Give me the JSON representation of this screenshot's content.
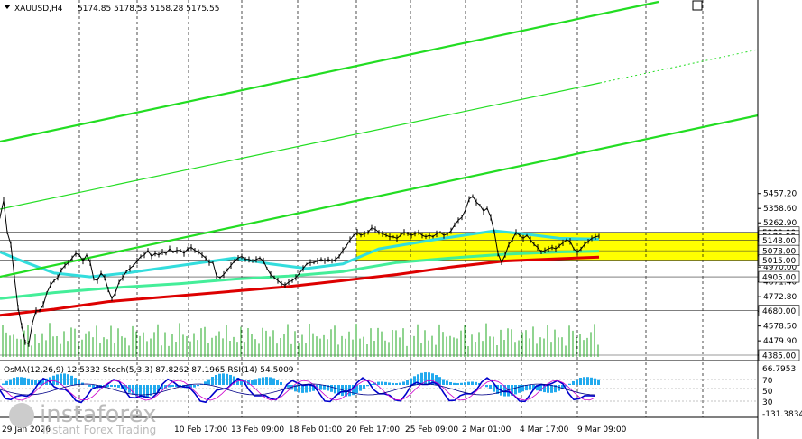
{
  "header": {
    "symbol": "XAUUSD,H4",
    "ohlc": "5174.85 5178.53 5158.28 5175.55"
  },
  "price_scale": {
    "ticks": [
      "5457.20",
      "5358.60",
      "5262.90",
      "5167.20",
      "5071.50",
      "4970.00",
      "4871.40",
      "4772.80",
      "4676.10",
      "4578.50",
      "4479.90",
      "4385.00"
    ],
    "levels": [
      {
        "label": "5200.00",
        "price": 5200.0,
        "kind": "level"
      },
      {
        "label": "5175.55",
        "price": 5175.55,
        "kind": "current"
      },
      {
        "label": "5148.00",
        "price": 5148.0,
        "kind": "level"
      },
      {
        "label": "5078.00",
        "price": 5078.0,
        "kind": "level"
      },
      {
        "label": "5015.00",
        "price": 5015.0,
        "kind": "level"
      },
      {
        "label": "4905.00",
        "price": 4905.0,
        "kind": "level"
      },
      {
        "label": "4680.00",
        "price": 4680.0,
        "kind": "level"
      },
      {
        "label": "4385.00",
        "price": 4385.0,
        "kind": "level"
      }
    ]
  },
  "time_axis": {
    "labels": [
      "29 Jan 2026",
      "10 Feb 17:00",
      "13 Feb 09:00",
      "18 Feb 01:00",
      "20 Feb 17:00",
      "25 Feb 09:00",
      "2 Mar 01:00",
      "4 Mar 17:00",
      "9 Mar 09:00"
    ]
  },
  "indicators": {
    "label": "OsMA(12,26,9) 12.5332  Stoch(5,3,3) 87.8262 87.1965  RSI(14) 54.5009",
    "scale": [
      "66.7953",
      "70",
      "50",
      "30",
      "-131.3834"
    ]
  },
  "watermark": {
    "brand": "instaforex",
    "tagline": "Instant Forex Trading"
  },
  "colors": {
    "zone": "#ffff00",
    "channel": "#22dd22",
    "ma_cyan": "#33dddd",
    "ma_green": "#44ee99",
    "ma_red": "#dd0000"
  },
  "chart_data": {
    "type": "candlestick",
    "symbol": "XAUUSD",
    "timeframe": "H4",
    "open": 5174.85,
    "high": 5178.53,
    "low": 5158.28,
    "close": 5175.55,
    "approx_close_path": [
      [
        0,
        5300
      ],
      [
        4,
        5410
      ],
      [
        8,
        5200
      ],
      [
        12,
        5120
      ],
      [
        16,
        4900
      ],
      [
        20,
        4700
      ],
      [
        24,
        4580
      ],
      [
        28,
        4470
      ],
      [
        32,
        4460
      ],
      [
        36,
        4600
      ],
      [
        40,
        4680
      ],
      [
        44,
        4680
      ],
      [
        48,
        4720
      ],
      [
        52,
        4800
      ],
      [
        56,
        4850
      ],
      [
        60,
        4880
      ],
      [
        64,
        4900
      ],
      [
        68,
        4950
      ],
      [
        72,
        4980
      ],
      [
        76,
        5000
      ],
      [
        80,
        5030
      ],
      [
        84,
        5060
      ],
      [
        88,
        5050
      ],
      [
        92,
        5010
      ],
      [
        96,
        5050
      ],
      [
        100,
        5000
      ],
      [
        104,
        4890
      ],
      [
        108,
        4880
      ],
      [
        112,
        4930
      ],
      [
        116,
        4900
      ],
      [
        120,
        4820
      ],
      [
        124,
        4760
      ],
      [
        128,
        4800
      ],
      [
        132,
        4870
      ],
      [
        136,
        4900
      ],
      [
        140,
        4940
      ],
      [
        144,
        4960
      ],
      [
        148,
        4980
      ],
      [
        152,
        5010
      ],
      [
        156,
        5040
      ],
      [
        160,
        5050
      ],
      [
        164,
        5080
      ],
      [
        168,
        5040
      ],
      [
        172,
        5060
      ],
      [
        176,
        5050
      ],
      [
        180,
        5070
      ],
      [
        184,
        5060
      ],
      [
        188,
        5090
      ],
      [
        192,
        5070
      ],
      [
        196,
        5080
      ],
      [
        200,
        5080
      ],
      [
        204,
        5060
      ],
      [
        208,
        5090
      ],
      [
        212,
        5100
      ],
      [
        216,
        5080
      ],
      [
        220,
        5070
      ],
      [
        224,
        5050
      ],
      [
        228,
        5030
      ],
      [
        232,
        5000
      ],
      [
        236,
        5000
      ],
      [
        240,
        4910
      ],
      [
        244,
        4900
      ],
      [
        248,
        4920
      ],
      [
        252,
        4950
      ],
      [
        256,
        4980
      ],
      [
        260,
        5010
      ],
      [
        264,
        5030
      ],
      [
        268,
        5040
      ],
      [
        272,
        5020
      ],
      [
        276,
        5020
      ],
      [
        280,
        5010
      ],
      [
        284,
        5020
      ],
      [
        288,
        5030
      ],
      [
        292,
        5010
      ],
      [
        296,
        4960
      ],
      [
        300,
        4920
      ],
      [
        304,
        4900
      ],
      [
        308,
        4880
      ],
      [
        312,
        4860
      ],
      [
        316,
        4850
      ],
      [
        320,
        4870
      ],
      [
        324,
        4880
      ],
      [
        328,
        4900
      ],
      [
        332,
        4930
      ],
      [
        336,
        4960
      ],
      [
        340,
        4990
      ],
      [
        344,
        5000
      ],
      [
        348,
        5000
      ],
      [
        352,
        5010
      ],
      [
        356,
        5020
      ],
      [
        360,
        5010
      ],
      [
        364,
        5020
      ],
      [
        368,
        5010
      ],
      [
        372,
        5020
      ],
      [
        376,
        5040
      ],
      [
        380,
        5080
      ],
      [
        384,
        5110
      ],
      [
        388,
        5150
      ],
      [
        392,
        5180
      ],
      [
        396,
        5200
      ],
      [
        400,
        5180
      ],
      [
        404,
        5190
      ],
      [
        408,
        5200
      ],
      [
        412,
        5230
      ],
      [
        416,
        5220
      ],
      [
        420,
        5200
      ],
      [
        424,
        5190
      ],
      [
        428,
        5180
      ],
      [
        432,
        5170
      ],
      [
        436,
        5170
      ],
      [
        440,
        5160
      ],
      [
        444,
        5180
      ],
      [
        448,
        5200
      ],
      [
        452,
        5190
      ],
      [
        456,
        5180
      ],
      [
        460,
        5190
      ],
      [
        464,
        5200
      ],
      [
        468,
        5180
      ],
      [
        472,
        5170
      ],
      [
        476,
        5180
      ],
      [
        480,
        5170
      ],
      [
        484,
        5190
      ],
      [
        488,
        5200
      ],
      [
        492,
        5180
      ],
      [
        496,
        5190
      ],
      [
        500,
        5210
      ],
      [
        504,
        5250
      ],
      [
        508,
        5280
      ],
      [
        512,
        5300
      ],
      [
        516,
        5350
      ],
      [
        520,
        5420
      ],
      [
        524,
        5440
      ],
      [
        528,
        5400
      ],
      [
        532,
        5380
      ],
      [
        536,
        5340
      ],
      [
        540,
        5360
      ],
      [
        544,
        5300
      ],
      [
        548,
        5200
      ],
      [
        552,
        5060
      ],
      [
        556,
        5000
      ],
      [
        560,
        5050
      ],
      [
        564,
        5120
      ],
      [
        568,
        5150
      ],
      [
        572,
        5200
      ],
      [
        576,
        5180
      ],
      [
        580,
        5160
      ],
      [
        584,
        5180
      ],
      [
        588,
        5150
      ],
      [
        592,
        5120
      ],
      [
        596,
        5100
      ],
      [
        600,
        5070
      ],
      [
        604,
        5080
      ],
      [
        608,
        5090
      ],
      [
        612,
        5100
      ],
      [
        616,
        5090
      ],
      [
        620,
        5110
      ],
      [
        624,
        5130
      ],
      [
        628,
        5150
      ],
      [
        632,
        5140
      ],
      [
        636,
        5090
      ],
      [
        640,
        5070
      ],
      [
        644,
        5090
      ],
      [
        648,
        5120
      ],
      [
        652,
        5140
      ],
      [
        656,
        5160
      ],
      [
        660,
        5170
      ],
      [
        664,
        5175
      ]
    ],
    "ma_cyan_path": [
      [
        0,
        5070
      ],
      [
        20,
        5020
      ],
      [
        60,
        4930
      ],
      [
        100,
        4905
      ],
      [
        140,
        4930
      ],
      [
        200,
        4980
      ],
      [
        260,
        5030
      ],
      [
        300,
        4990
      ],
      [
        340,
        4960
      ],
      [
        380,
        4990
      ],
      [
        420,
        5090
      ],
      [
        480,
        5150
      ],
      [
        520,
        5185
      ],
      [
        548,
        5210
      ],
      [
        580,
        5190
      ],
      [
        620,
        5160
      ],
      [
        664,
        5155
      ]
    ],
    "ma_green_path": [
      [
        0,
        4760
      ],
      [
        60,
        4800
      ],
      [
        120,
        4830
      ],
      [
        200,
        4860
      ],
      [
        260,
        4890
      ],
      [
        320,
        4910
      ],
      [
        380,
        4940
      ],
      [
        440,
        5000
      ],
      [
        500,
        5030
      ],
      [
        560,
        5055
      ],
      [
        620,
        5070
      ],
      [
        664,
        5075
      ]
    ],
    "ma_red_path": [
      [
        0,
        4650
      ],
      [
        60,
        4690
      ],
      [
        120,
        4740
      ],
      [
        200,
        4780
      ],
      [
        260,
        4810
      ],
      [
        320,
        4840
      ],
      [
        380,
        4880
      ],
      [
        440,
        4920
      ],
      [
        500,
        4970
      ],
      [
        560,
        5010
      ],
      [
        620,
        5025
      ],
      [
        664,
        5035
      ]
    ]
  }
}
